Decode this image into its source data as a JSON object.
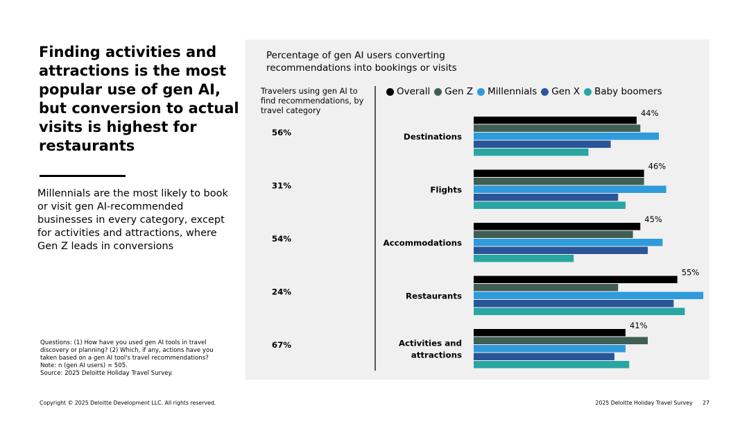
{
  "headline": "Finding activities and attractions is the most popular use of gen AI, but conversion to actual visits is highest for restaurants",
  "subtext": "Millennials are the most likely to book or visit gen AI-recommended businesses in every category, except for activities and attractions, where Gen Z leads in conversions",
  "notes": {
    "questions": "Questions: (1) How have you used gen AI tools in travel discovery or planning? (2) Which, if any, actions have you taken based on a gen AI tool's travel recommendations?",
    "note": "Note: n (gen AI users) = 505.",
    "source": "Source: 2025 Deloitte Holiday Travel Survey."
  },
  "footer": {
    "copyright": "Copyright © 2025 Deloitte Development LLC. All rights reserved.",
    "survey": "2025 Deloitte Holiday Travel Survey",
    "page": "27"
  },
  "chart_data": {
    "type": "bar",
    "orientation": "horizontal",
    "title": "Percentage of gen AI users converting recommendations into bookings or visits",
    "left_column_header": "Travelers using gen AI to find recommendations, by travel category",
    "categories": [
      "Destinations",
      "Flights",
      "Accommodations",
      "Restaurants",
      "Activities and attractions"
    ],
    "category_lines": [
      [
        "Destinations"
      ],
      [
        "Flights"
      ],
      [
        "Accommodations"
      ],
      [
        "Restaurants"
      ],
      [
        "Activities and",
        "attractions"
      ]
    ],
    "usage_percent_labels": [
      "56%",
      "31%",
      "54%",
      "24%",
      "67%"
    ],
    "xlim": [
      0,
      60
    ],
    "series": [
      {
        "name": "Overall",
        "color": "#000000",
        "values": [
          44,
          46,
          45,
          55,
          41
        ],
        "labels": [
          "44%",
          "46%",
          "45%",
          "55%",
          "41%"
        ]
      },
      {
        "name": "Gen Z",
        "color": "#3f5e54",
        "values": [
          45,
          46,
          43,
          39,
          47
        ]
      },
      {
        "name": "Millennials",
        "color": "#2e9bdb",
        "values": [
          50,
          52,
          51,
          62,
          41
        ]
      },
      {
        "name": "Gen X",
        "color": "#2a5597",
        "values": [
          37,
          39,
          47,
          54,
          38
        ]
      },
      {
        "name": "Baby boomers",
        "color": "#2aa6a2",
        "values": [
          31,
          41,
          27,
          57,
          42
        ]
      }
    ],
    "legend_position": "top"
  }
}
